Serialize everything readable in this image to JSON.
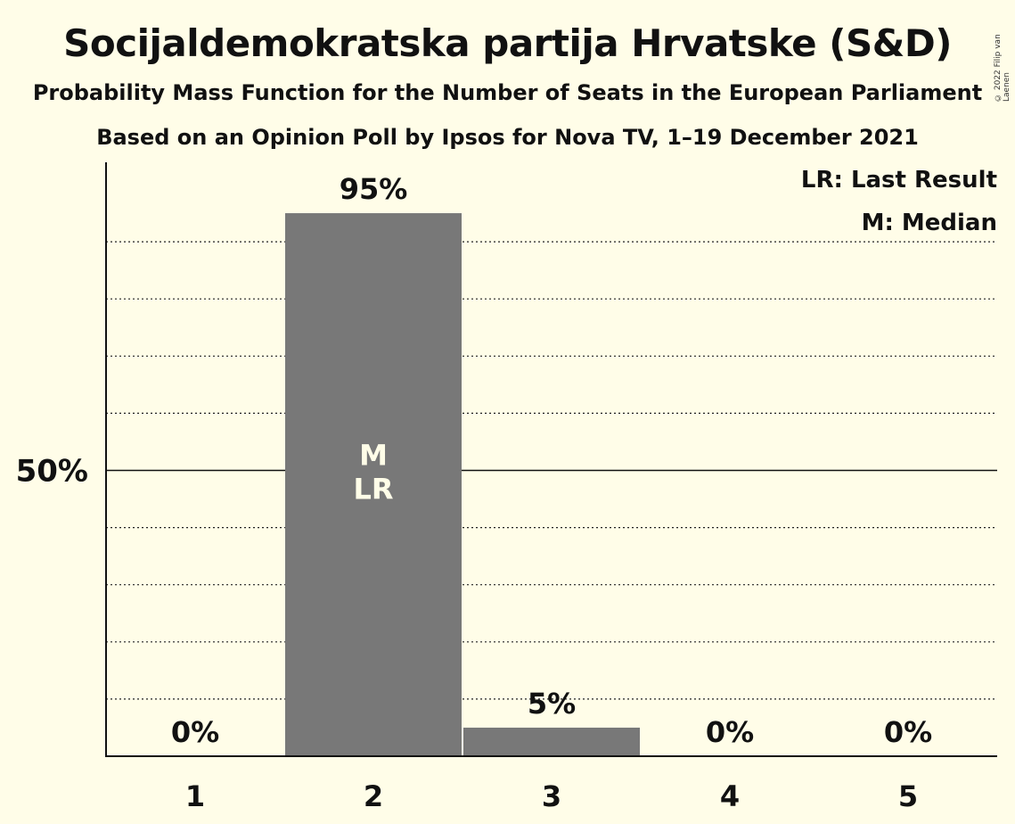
{
  "chart_data": {
    "type": "bar",
    "title": "Socijaldemokratska partija Hrvatske (S&D)",
    "subtitle": "Probability Mass Function for the Number of Seats in the European Parliament",
    "subtitle2": "Based on an Opinion Poll by Ipsos for Nova TV, 1–19 December 2021",
    "categories": [
      "1",
      "2",
      "3",
      "4",
      "5"
    ],
    "values": [
      0,
      95,
      5,
      0,
      0
    ],
    "value_labels": [
      "0%",
      "95%",
      "5%",
      "0%",
      "0%"
    ],
    "ylim": [
      0,
      100
    ],
    "y_ticks": [
      {
        "value": 50,
        "label": "50%"
      }
    ],
    "bar_markers": [
      {
        "category": "2",
        "lines": [
          "M",
          "LR"
        ]
      }
    ],
    "legend": [
      "LR: Last Result",
      "M: Median"
    ],
    "legend_position": "top-right",
    "grid": true,
    "bar_color": "#787878",
    "background_color": "#fffde8"
  },
  "copyright": "© 2022 Filip van Laenen"
}
